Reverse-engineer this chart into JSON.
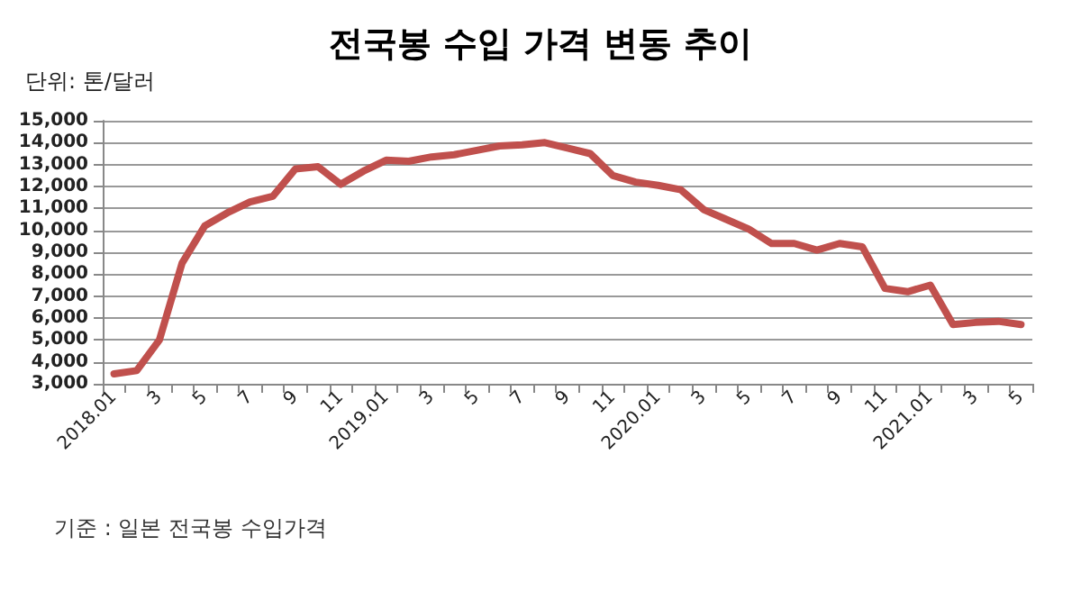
{
  "chart_data": {
    "type": "line",
    "title": "전국봉 수입 가격 변동 추이",
    "ylabel": "단위: 톤/달러",
    "annotations": [
      "기준 : 일본 전국봉 수입가격"
    ],
    "categories": [
      "2018.01",
      null,
      "3",
      null,
      "5",
      null,
      "7",
      null,
      "9",
      null,
      "11",
      null,
      "2019.01",
      null,
      "3",
      null,
      "5",
      null,
      "7",
      null,
      "9",
      null,
      "11",
      null,
      "2020.01",
      null,
      "3",
      null,
      "5",
      null,
      "7",
      null,
      "9",
      null,
      "11",
      null,
      "2021.01",
      null,
      "3",
      null,
      "5"
    ],
    "series": [
      {
        "color": "#c0504d",
        "values": [
          3450,
          3600,
          5000,
          8500,
          10200,
          10800,
          11300,
          11550,
          12800,
          12900,
          12100,
          12700,
          13200,
          13150,
          13350,
          13450,
          13650,
          13850,
          13900,
          14000,
          13750,
          13500,
          12500,
          12200,
          12050,
          11850,
          10950,
          10500,
          10050,
          9400,
          9400,
          9100,
          9400,
          9250,
          7350,
          7200,
          7500,
          5700,
          5800,
          5850,
          5700
        ]
      }
    ],
    "ylim": [
      3000,
      15000
    ],
    "yticks": [
      {
        "value": 3000,
        "label": "3,000"
      },
      {
        "value": 4000,
        "label": "4,000"
      },
      {
        "value": 5000,
        "label": "5,000"
      },
      {
        "value": 6000,
        "label": "6,000"
      },
      {
        "value": 7000,
        "label": "7,000"
      },
      {
        "value": 8000,
        "label": "8,000"
      },
      {
        "value": 9000,
        "label": "9,000"
      },
      {
        "value": 10000,
        "label": "10,000"
      },
      {
        "value": 11000,
        "label": "11,000"
      },
      {
        "value": 12000,
        "label": "12,000"
      },
      {
        "value": 13000,
        "label": "13,000"
      },
      {
        "value": 14000,
        "label": "14,000"
      },
      {
        "value": 15000,
        "label": "15,000"
      }
    ],
    "grid": "y",
    "marker": "none",
    "line_style": "solid"
  }
}
